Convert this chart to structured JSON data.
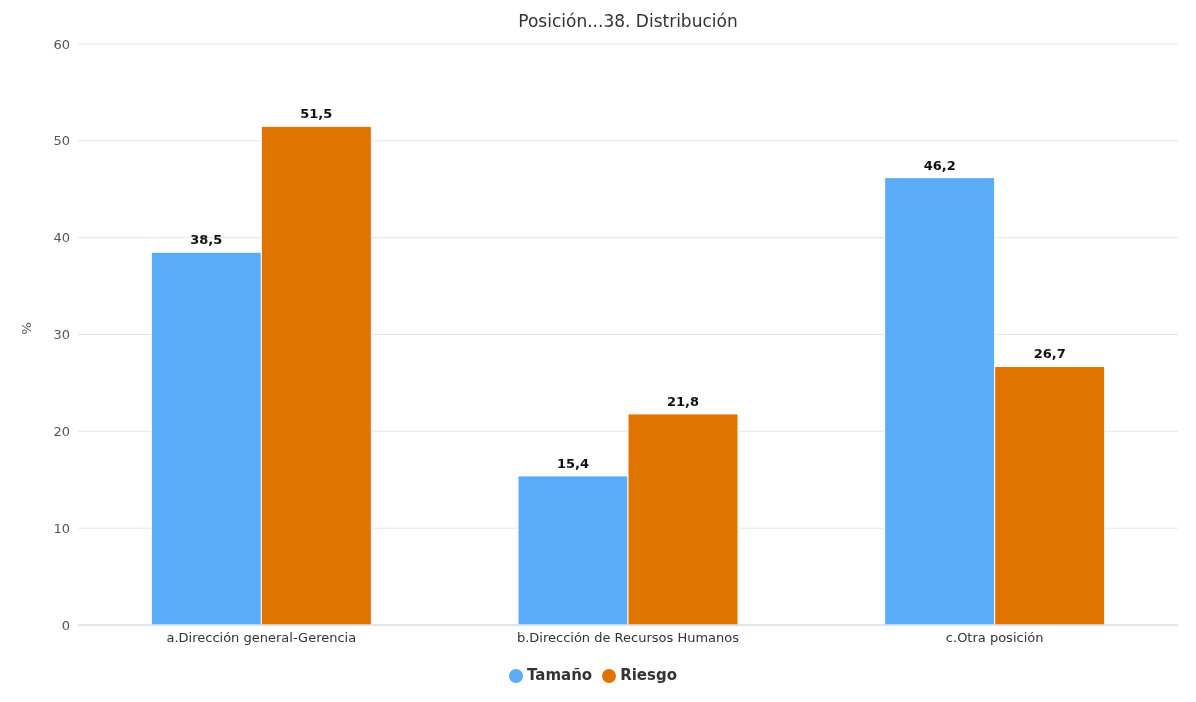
{
  "chart_data": {
    "type": "bar",
    "title": "Posición...38. Distribución",
    "ylabel": "%",
    "categories": [
      "a.Dirección general-Gerencia",
      "b.Dirección de Recursos Humanos",
      "c.Otra posición"
    ],
    "series": [
      {
        "name": "Tamaño",
        "color": "#5aabf8",
        "values": [
          38.5,
          15.4,
          46.2
        ],
        "value_labels": [
          "38,5",
          "15,4",
          "46,2"
        ]
      },
      {
        "name": "Riesgo",
        "color": "#e07400",
        "values": [
          51.5,
          21.8,
          26.7
        ],
        "value_labels": [
          "51,5",
          "21,8",
          "26,7"
        ]
      }
    ],
    "ylim": [
      0,
      60
    ],
    "yticks": [
      0,
      10,
      20,
      30,
      40,
      50,
      60
    ],
    "grid": "y",
    "legend": "bottom"
  }
}
